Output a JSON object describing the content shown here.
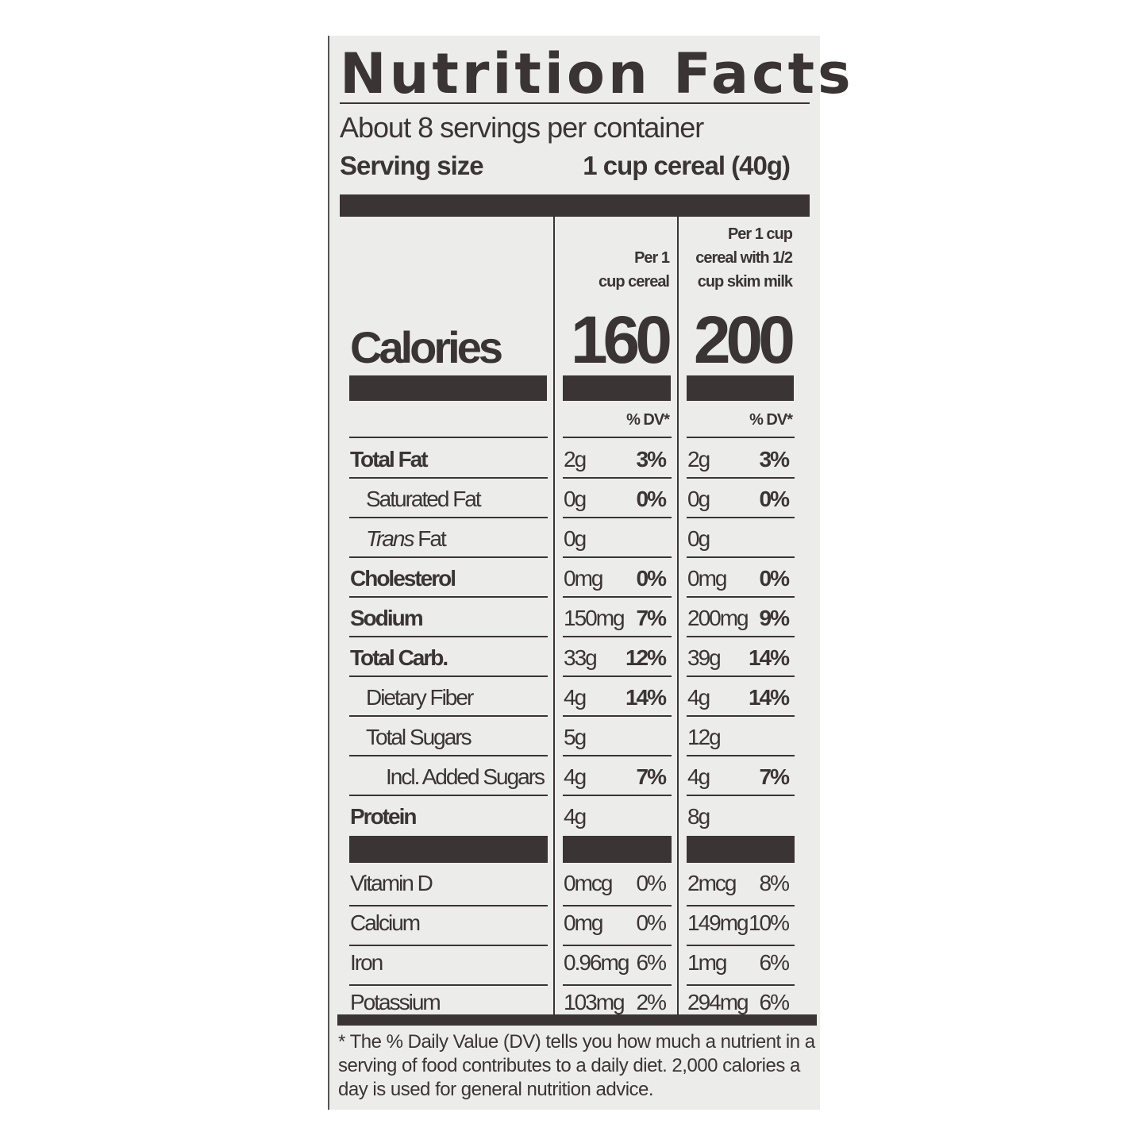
{
  "label": {
    "title": "Nutrition Facts",
    "servings_per_container": "About 8 servings per container",
    "serving_size_label": "Serving size",
    "serving_size_value": "1 cup cereal (40g)",
    "columns": [
      {
        "header": [
          "Per 1",
          "cup cereal"
        ],
        "calories": "160",
        "dv_header": "% DV*"
      },
      {
        "header": [
          "Per 1 cup",
          "cereal with 1/2",
          "cup skim milk"
        ],
        "calories": "200",
        "dv_header": "% DV*"
      }
    ],
    "calories_label": "Calories",
    "nutrients": [
      {
        "name": "Total Fat",
        "bold": true,
        "indent": 0,
        "values": [
          [
            "2g",
            "3%"
          ],
          [
            "2g",
            "3%"
          ]
        ]
      },
      {
        "name": "Saturated Fat",
        "bold": false,
        "indent": 1,
        "values": [
          [
            "0g",
            "0%"
          ],
          [
            "0g",
            "0%"
          ]
        ]
      },
      {
        "name": "Trans Fat",
        "italic_prefix": "Trans",
        "bold": false,
        "indent": 1,
        "values": [
          [
            "0g",
            ""
          ],
          [
            "0g",
            ""
          ]
        ]
      },
      {
        "name": "Cholesterol",
        "bold": true,
        "indent": 0,
        "values": [
          [
            "0mg",
            "0%"
          ],
          [
            "0mg",
            "0%"
          ]
        ]
      },
      {
        "name": "Sodium",
        "bold": true,
        "indent": 0,
        "values": [
          [
            "150mg",
            "7%"
          ],
          [
            "200mg",
            "9%"
          ]
        ]
      },
      {
        "name": "Total Carb.",
        "bold": true,
        "indent": 0,
        "values": [
          [
            "33g",
            "12%"
          ],
          [
            "39g",
            "14%"
          ]
        ]
      },
      {
        "name": "Dietary Fiber",
        "bold": false,
        "indent": 1,
        "values": [
          [
            "4g",
            "14%"
          ],
          [
            "4g",
            "14%"
          ]
        ]
      },
      {
        "name": "Total Sugars",
        "bold": false,
        "indent": 1,
        "values": [
          [
            "5g",
            ""
          ],
          [
            "12g",
            ""
          ]
        ]
      },
      {
        "name": "Incl. Added Sugars",
        "bold": false,
        "indent": 2,
        "values": [
          [
            "4g",
            "7%"
          ],
          [
            "4g",
            "7%"
          ]
        ]
      },
      {
        "name": "Protein",
        "bold": true,
        "indent": 0,
        "values": [
          [
            "4g",
            ""
          ],
          [
            "8g",
            ""
          ]
        ]
      }
    ],
    "vitamins": [
      {
        "name": "Vitamin D",
        "values": [
          [
            "0mcg",
            "0%"
          ],
          [
            "2mcg",
            "8%"
          ]
        ]
      },
      {
        "name": "Calcium",
        "values": [
          [
            "0mg",
            "0%"
          ],
          [
            "149mg",
            "10%"
          ]
        ]
      },
      {
        "name": "Iron",
        "values": [
          [
            "0.96mg",
            "6%"
          ],
          [
            "1mg",
            "6%"
          ]
        ]
      },
      {
        "name": "Potassium",
        "values": [
          [
            "103mg",
            "2%"
          ],
          [
            "294mg",
            "6%"
          ]
        ]
      }
    ],
    "footnote": "* The % Daily Value (DV) tells you how much a nutrient in a serving of food contributes to a daily diet. 2,000 calories a day is used for general nutrition advice."
  },
  "colors": {
    "ink": "#3a3434",
    "background": "#ecedeb"
  }
}
